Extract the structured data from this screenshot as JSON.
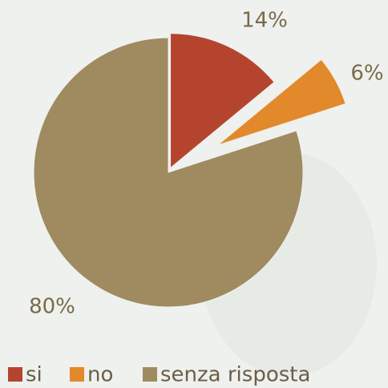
{
  "chart_data": {
    "type": "pie",
    "categories": [
      "si",
      "no",
      "senza risposta"
    ],
    "values": [
      14,
      6,
      80
    ],
    "value_labels": [
      "14%",
      "6%",
      "80%"
    ],
    "colors": [
      "#b5442f",
      "#e2892c",
      "#a08a60"
    ],
    "legend": "bottom"
  }
}
